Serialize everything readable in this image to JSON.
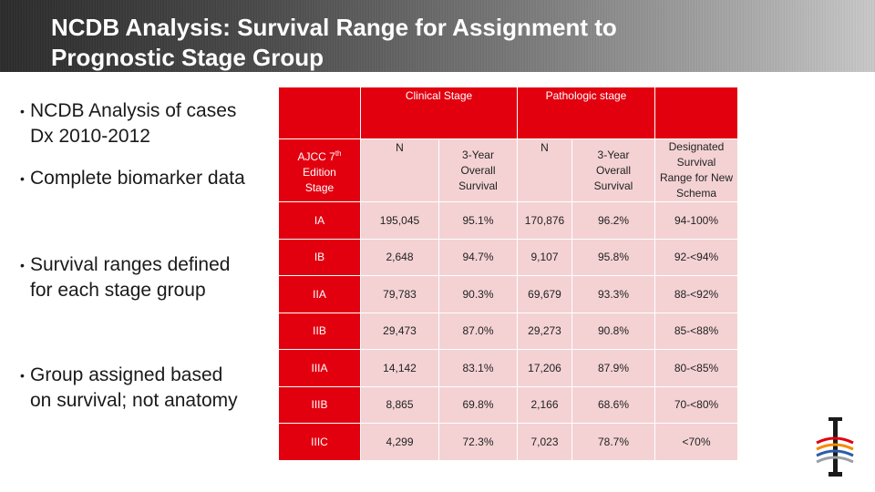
{
  "title": {
    "line1": "NCDB Analysis: Survival Range for Assignment to",
    "line2": "Prognostic Stage Group"
  },
  "bullets": [
    {
      "lines": [
        "NCDB Analysis of cases",
        "Dx 2010-2012"
      ]
    },
    {
      "lines": [
        "Complete biomarker data"
      ]
    },
    {
      "lines": [
        "Survival ranges defined",
        "for each stage group"
      ]
    },
    {
      "lines": [
        "Group assigned based",
        "on survival; not anatomy"
      ]
    }
  ],
  "table": {
    "group_headers": {
      "clinical": "Clinical Stage",
      "pathologic": "Pathologic stage"
    },
    "col_headers": {
      "stage": {
        "line1": "AJCC 7",
        "sup": "th",
        "line2": "Edition",
        "line3": "Stage"
      },
      "clin_n": "N",
      "clin_surv": [
        "3-Year",
        "Overall",
        "Survival"
      ],
      "path_n": "N",
      "path_surv": [
        "3-Year",
        "Overall",
        "Survival"
      ],
      "range": [
        "Designated Survival",
        "Range for New",
        "Schema"
      ]
    },
    "rows": [
      {
        "stage": "IA",
        "clin_n": "195,045",
        "clin_surv": "95.1%",
        "path_n": "170,876",
        "path_surv": "96.2%",
        "range": "94-100%"
      },
      {
        "stage": "IB",
        "clin_n": "2,648",
        "clin_surv": "94.7%",
        "path_n": "9,107",
        "path_surv": "95.8%",
        "range": "92-<94%"
      },
      {
        "stage": "IIA",
        "clin_n": "79,783",
        "clin_surv": "90.3%",
        "path_n": "69,679",
        "path_surv": "93.3%",
        "range": "88-<92%"
      },
      {
        "stage": "IIB",
        "clin_n": "29,473",
        "clin_surv": "87.0%",
        "path_n": "29,273",
        "path_surv": "90.8%",
        "range": "85-<88%"
      },
      {
        "stage": "IIIA",
        "clin_n": "14,142",
        "clin_surv": "83.1%",
        "path_n": "17,206",
        "path_surv": "87.9%",
        "range": "80-<85%"
      },
      {
        "stage": "IIIB",
        "clin_n": "8,865",
        "clin_surv": "69.8%",
        "path_n": "2,166",
        "path_surv": "68.6%",
        "range": "70-<80%"
      },
      {
        "stage": "IIIC",
        "clin_n": "4,299",
        "clin_surv": "72.3%",
        "path_n": "7,023",
        "path_surv": "78.7%",
        "range": "<70%"
      }
    ]
  },
  "colors": {
    "header_red": "#e2000f",
    "cell_pink": "#f4d2d4"
  },
  "logo": {
    "icon": "ajcc-logo-icon"
  }
}
